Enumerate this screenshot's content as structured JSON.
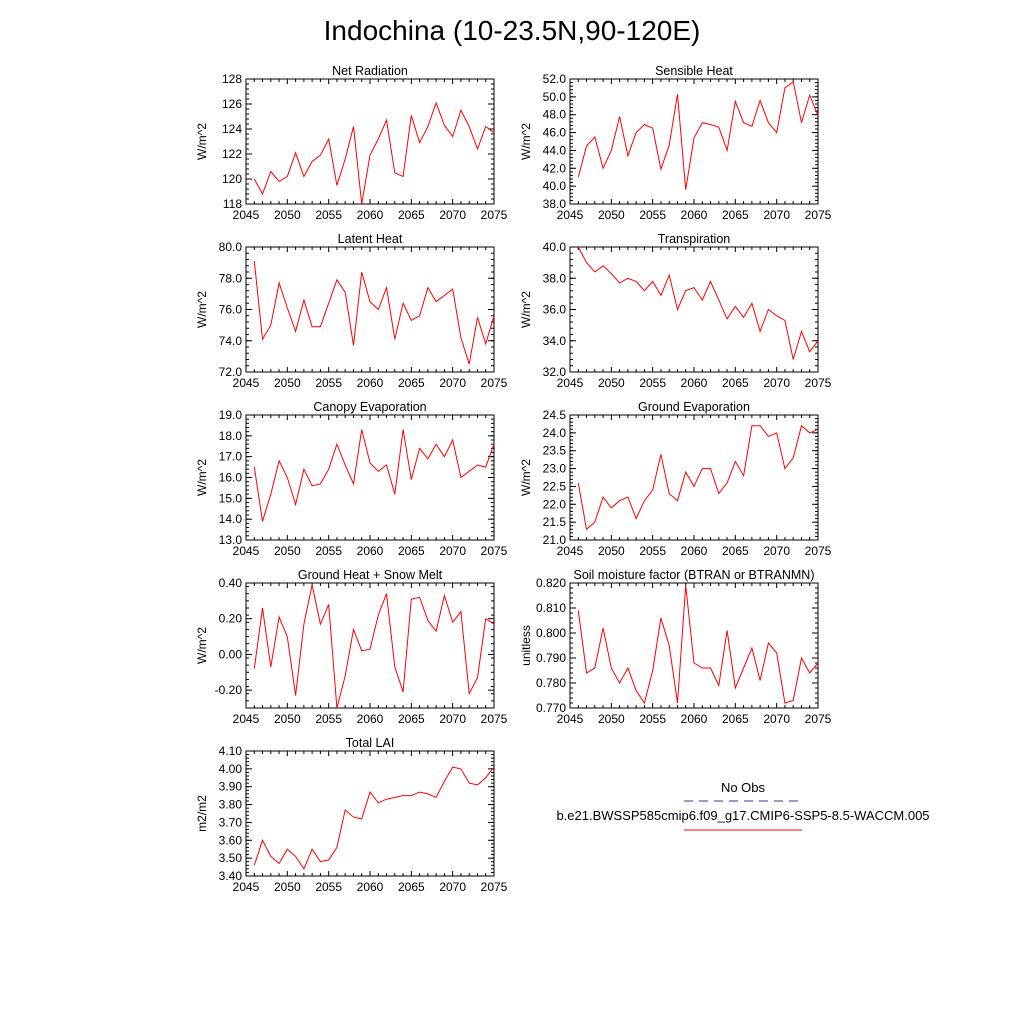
{
  "title": "Indochina (10-23.5N,90-120E)",
  "series_color": "#ff0000",
  "obs_color": "#3333aa",
  "legend": {
    "obs_label": "No Obs",
    "model_label": "b.e21.BWSSP585cmip6.f09_g17.CMIP6-SSP5-8.5-WACCM.005"
  },
  "chart_data": [
    {
      "type": "line",
      "title": "Net Radiation",
      "ylabel": "W/m^2",
      "xlim": [
        2045,
        2075
      ],
      "ylim": [
        118,
        128
      ],
      "x_ticks": [
        2045,
        2050,
        2055,
        2060,
        2065,
        2070,
        2075
      ],
      "y_ticks": [
        "118",
        "120",
        "122",
        "124",
        "126",
        "128"
      ],
      "y_tick_values": [
        118,
        120,
        122,
        124,
        126,
        128
      ],
      "x": [
        2046,
        2047,
        2048,
        2049,
        2050,
        2051,
        2052,
        2053,
        2054,
        2055,
        2056,
        2057,
        2058,
        2059,
        2060,
        2061,
        2062,
        2063,
        2064,
        2065,
        2066,
        2067,
        2068,
        2069,
        2070,
        2071,
        2072,
        2073,
        2074,
        2075
      ],
      "values": [
        120.0,
        118.8,
        120.6,
        119.8,
        120.2,
        122.1,
        120.2,
        121.4,
        121.9,
        123.2,
        119.5,
        121.6,
        124.2,
        118.0,
        121.9,
        123.2,
        124.7,
        120.5,
        120.2,
        125.1,
        122.9,
        124.2,
        126.1,
        124.3,
        123.4,
        125.5,
        124.2,
        122.4,
        124.2,
        123.7
      ]
    },
    {
      "type": "line",
      "title": "Sensible Heat",
      "ylabel": "W/m^2",
      "xlim": [
        2045,
        2075
      ],
      "ylim": [
        38.0,
        52.0
      ],
      "x_ticks": [
        2045,
        2050,
        2055,
        2060,
        2065,
        2070,
        2075
      ],
      "y_ticks": [
        "38.0",
        "40.0",
        "42.0",
        "44.0",
        "46.0",
        "48.0",
        "50.0",
        "52.0"
      ],
      "y_tick_values": [
        38,
        40,
        42,
        44,
        46,
        48,
        50,
        52
      ],
      "x": [
        2046,
        2047,
        2048,
        2049,
        2050,
        2051,
        2052,
        2053,
        2054,
        2055,
        2056,
        2057,
        2058,
        2059,
        2060,
        2061,
        2062,
        2063,
        2064,
        2065,
        2066,
        2067,
        2068,
        2069,
        2070,
        2071,
        2072,
        2073,
        2074,
        2075
      ],
      "values": [
        41.0,
        44.5,
        45.5,
        42.0,
        44.0,
        47.8,
        43.4,
        46.0,
        46.9,
        46.5,
        41.9,
        44.6,
        50.3,
        39.6,
        45.4,
        47.1,
        46.9,
        46.6,
        44.0,
        49.5,
        47.1,
        46.7,
        49.6,
        47.1,
        46.0,
        51.0,
        51.7,
        47.1,
        50.2,
        47.9
      ]
    },
    {
      "type": "line",
      "title": "Latent Heat",
      "ylabel": "W/m^2",
      "xlim": [
        2045,
        2075
      ],
      "ylim": [
        72.0,
        80.0
      ],
      "x_ticks": [
        2045,
        2050,
        2055,
        2060,
        2065,
        2070,
        2075
      ],
      "y_ticks": [
        "72.0",
        "74.0",
        "76.0",
        "78.0",
        "80.0"
      ],
      "y_tick_values": [
        72,
        74,
        76,
        78,
        80
      ],
      "x": [
        2046,
        2047,
        2048,
        2049,
        2050,
        2051,
        2052,
        2053,
        2054,
        2055,
        2056,
        2057,
        2058,
        2059,
        2060,
        2061,
        2062,
        2063,
        2064,
        2065,
        2066,
        2067,
        2068,
        2069,
        2070,
        2071,
        2072,
        2073,
        2074,
        2075
      ],
      "values": [
        79.1,
        74.1,
        75.0,
        77.7,
        76.1,
        74.6,
        76.6,
        74.9,
        74.9,
        76.4,
        77.9,
        77.1,
        73.7,
        78.4,
        76.5,
        76.0,
        77.4,
        74.1,
        76.4,
        75.3,
        75.6,
        77.4,
        76.5,
        76.9,
        77.3,
        74.2,
        72.5,
        75.5,
        73.8,
        75.6
      ]
    },
    {
      "type": "line",
      "title": "Transpiration",
      "ylabel": "W/m^2",
      "xlim": [
        2045,
        2075
      ],
      "ylim": [
        32.0,
        40.0
      ],
      "x_ticks": [
        2045,
        2050,
        2055,
        2060,
        2065,
        2070,
        2075
      ],
      "y_ticks": [
        "32.0",
        "34.0",
        "36.0",
        "38.0",
        "40.0"
      ],
      "y_tick_values": [
        32,
        34,
        36,
        38,
        40
      ],
      "x": [
        2046,
        2047,
        2048,
        2049,
        2050,
        2051,
        2052,
        2053,
        2054,
        2055,
        2056,
        2057,
        2058,
        2059,
        2060,
        2061,
        2062,
        2063,
        2064,
        2065,
        2066,
        2067,
        2068,
        2069,
        2070,
        2071,
        2072,
        2073,
        2074,
        2075
      ],
      "values": [
        40.0,
        39.0,
        38.4,
        38.8,
        38.3,
        37.7,
        38.0,
        37.8,
        37.2,
        37.8,
        36.9,
        38.2,
        36.0,
        37.2,
        37.4,
        36.6,
        37.8,
        36.6,
        35.4,
        36.2,
        35.5,
        36.4,
        34.6,
        36.0,
        35.6,
        35.3,
        32.8,
        34.6,
        33.3,
        34.0
      ]
    },
    {
      "type": "line",
      "title": "Canopy Evaporation",
      "ylabel": "W/m^2",
      "xlim": [
        2045,
        2075
      ],
      "ylim": [
        13.0,
        19.0
      ],
      "x_ticks": [
        2045,
        2050,
        2055,
        2060,
        2065,
        2070,
        2075
      ],
      "y_ticks": [
        "13.0",
        "14.0",
        "15.0",
        "16.0",
        "17.0",
        "18.0",
        "19.0"
      ],
      "y_tick_values": [
        13,
        14,
        15,
        16,
        17,
        18,
        19
      ],
      "x": [
        2046,
        2047,
        2048,
        2049,
        2050,
        2051,
        2052,
        2053,
        2054,
        2055,
        2056,
        2057,
        2058,
        2059,
        2060,
        2061,
        2062,
        2063,
        2064,
        2065,
        2066,
        2067,
        2068,
        2069,
        2070,
        2071,
        2072,
        2073,
        2074,
        2075
      ],
      "values": [
        16.5,
        13.9,
        15.2,
        16.8,
        16.0,
        14.7,
        16.4,
        15.6,
        15.7,
        16.4,
        17.6,
        16.6,
        15.7,
        18.3,
        16.7,
        16.3,
        16.6,
        15.2,
        18.3,
        15.9,
        17.4,
        16.9,
        17.6,
        17.0,
        17.8,
        16.0,
        16.3,
        16.6,
        16.5,
        17.6
      ]
    },
    {
      "type": "line",
      "title": "Ground Evaporation",
      "ylabel": "W/m^2",
      "xlim": [
        2045,
        2075
      ],
      "ylim": [
        21.0,
        24.5
      ],
      "x_ticks": [
        2045,
        2050,
        2055,
        2060,
        2065,
        2070,
        2075
      ],
      "y_ticks": [
        "21.0",
        "21.5",
        "22.0",
        "22.5",
        "23.0",
        "23.5",
        "24.0",
        "24.5"
      ],
      "y_tick_values": [
        21.0,
        21.5,
        22.0,
        22.5,
        23.0,
        23.5,
        24.0,
        24.5
      ],
      "x": [
        2046,
        2047,
        2048,
        2049,
        2050,
        2051,
        2052,
        2053,
        2054,
        2055,
        2056,
        2057,
        2058,
        2059,
        2060,
        2061,
        2062,
        2063,
        2064,
        2065,
        2066,
        2067,
        2068,
        2069,
        2070,
        2071,
        2072,
        2073,
        2074,
        2075
      ],
      "values": [
        22.6,
        21.3,
        21.5,
        22.2,
        21.9,
        22.1,
        22.2,
        21.6,
        22.1,
        22.4,
        23.4,
        22.3,
        22.1,
        22.9,
        22.5,
        23.0,
        23.0,
        22.3,
        22.6,
        23.2,
        22.8,
        24.2,
        24.2,
        23.9,
        24.0,
        23.0,
        23.3,
        24.2,
        24.0,
        24.1
      ]
    },
    {
      "type": "line",
      "title": "Ground Heat + Snow Melt",
      "ylabel": "W/m^2",
      "xlim": [
        2045,
        2075
      ],
      "ylim": [
        -0.3,
        0.4
      ],
      "x_ticks": [
        2045,
        2050,
        2055,
        2060,
        2065,
        2070,
        2075
      ],
      "y_ticks": [
        "-0.20",
        "0.00",
        "0.20",
        "0.40"
      ],
      "y_tick_values": [
        -0.2,
        0.0,
        0.2,
        0.4
      ],
      "x": [
        2046,
        2047,
        2048,
        2049,
        2050,
        2051,
        2052,
        2053,
        2054,
        2055,
        2056,
        2057,
        2058,
        2059,
        2060,
        2061,
        2062,
        2063,
        2064,
        2065,
        2066,
        2067,
        2068,
        2069,
        2070,
        2071,
        2072,
        2073,
        2074,
        2075
      ],
      "values": [
        -0.08,
        0.26,
        -0.07,
        0.21,
        0.1,
        -0.23,
        0.17,
        0.39,
        0.17,
        0.28,
        -0.3,
        -0.12,
        0.14,
        0.02,
        0.03,
        0.22,
        0.34,
        -0.07,
        -0.21,
        0.31,
        0.32,
        0.19,
        0.13,
        0.33,
        0.18,
        0.24,
        -0.22,
        -0.13,
        0.2,
        0.17
      ]
    },
    {
      "type": "line",
      "title": "Soil moisture factor (BTRAN or BTRANMN)",
      "ylabel": "unitless",
      "xlim": [
        2045,
        2075
      ],
      "ylim": [
        0.77,
        0.82
      ],
      "x_ticks": [
        2045,
        2050,
        2055,
        2060,
        2065,
        2070,
        2075
      ],
      "y_ticks": [
        "0.770",
        "0.780",
        "0.790",
        "0.800",
        "0.810",
        "0.820"
      ],
      "y_tick_values": [
        0.77,
        0.78,
        0.79,
        0.8,
        0.81,
        0.82
      ],
      "x": [
        2046,
        2047,
        2048,
        2049,
        2050,
        2051,
        2052,
        2053,
        2054,
        2055,
        2056,
        2057,
        2058,
        2059,
        2060,
        2061,
        2062,
        2063,
        2064,
        2065,
        2066,
        2067,
        2068,
        2069,
        2070,
        2071,
        2072,
        2073,
        2074,
        2075
      ],
      "values": [
        0.809,
        0.784,
        0.786,
        0.802,
        0.786,
        0.78,
        0.786,
        0.777,
        0.772,
        0.785,
        0.806,
        0.795,
        0.772,
        0.819,
        0.788,
        0.786,
        0.786,
        0.779,
        0.801,
        0.778,
        0.786,
        0.794,
        0.781,
        0.796,
        0.792,
        0.772,
        0.773,
        0.79,
        0.784,
        0.788
      ]
    },
    {
      "type": "line",
      "title": "Total LAI",
      "ylabel": "m2/m2",
      "xlim": [
        2045,
        2075
      ],
      "ylim": [
        3.4,
        4.1
      ],
      "x_ticks": [
        2045,
        2050,
        2055,
        2060,
        2065,
        2070,
        2075
      ],
      "y_ticks": [
        "3.40",
        "3.50",
        "3.60",
        "3.70",
        "3.80",
        "3.90",
        "4.00",
        "4.10"
      ],
      "y_tick_values": [
        3.4,
        3.5,
        3.6,
        3.7,
        3.8,
        3.9,
        4.0,
        4.1
      ],
      "x": [
        2046,
        2047,
        2048,
        2049,
        2050,
        2051,
        2052,
        2053,
        2054,
        2055,
        2056,
        2057,
        2058,
        2059,
        2060,
        2061,
        2062,
        2063,
        2064,
        2065,
        2066,
        2067,
        2068,
        2069,
        2070,
        2071,
        2072,
        2073,
        2074,
        2075
      ],
      "values": [
        3.46,
        3.6,
        3.51,
        3.47,
        3.55,
        3.51,
        3.44,
        3.55,
        3.48,
        3.49,
        3.56,
        3.77,
        3.73,
        3.72,
        3.87,
        3.81,
        3.83,
        3.84,
        3.85,
        3.85,
        3.87,
        3.86,
        3.84,
        3.93,
        4.01,
        4.0,
        3.92,
        3.91,
        3.95,
        4.01
      ]
    }
  ]
}
